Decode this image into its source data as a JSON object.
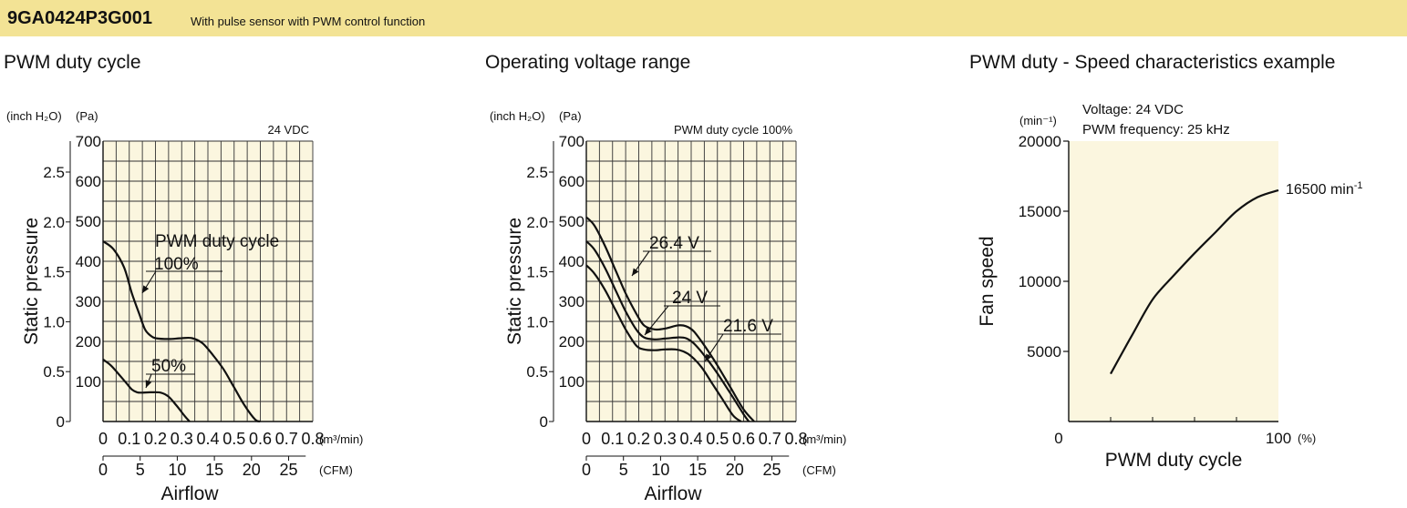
{
  "header": {
    "model": "9GA0424P3G001",
    "subtitle": "With pulse sensor with PWM control function"
  },
  "colors": {
    "header_bg": "#f3e395",
    "plot_bg": "#fbf6df",
    "line": "#111111"
  },
  "chart_data": [
    {
      "id": "pwm-duty-cycle",
      "type": "line",
      "title": "PWM duty cycle",
      "condition": "24 VDC",
      "ylabel": "Static pressure",
      "xlabel": "Airflow",
      "y_unit_left": "(inch H₂O)",
      "y_unit_right": "(Pa)",
      "x_unit_top": "(m³/min)",
      "x_unit_bottom": "(CFM)",
      "ylim": [
        0,
        700
      ],
      "xlim": [
        0,
        0.8
      ],
      "grid": true,
      "pa_ticks": [
        "0",
        "100",
        "200",
        "300",
        "400",
        "500",
        "600",
        "700"
      ],
      "inch_ticks": [
        "0",
        "0.5",
        "1.0",
        "1.5",
        "2.0",
        "2.5"
      ],
      "x_ticks": [
        "0",
        "0.1",
        "0.2",
        "0.3",
        "0.4",
        "0.5",
        "0.6",
        "0.7",
        "0.8"
      ],
      "cfm_ticks": [
        "0",
        "5",
        "10",
        "15",
        "20",
        "25"
      ],
      "annotations": [
        "PWM duty cycle",
        "100%",
        "50%"
      ],
      "series": [
        {
          "name": "100%",
          "x": [
            0,
            0.04,
            0.08,
            0.11,
            0.14,
            0.16,
            0.18,
            0.2,
            0.25,
            0.3,
            0.34,
            0.38,
            0.42,
            0.46,
            0.5,
            0.54,
            0.58,
            0.6
          ],
          "y": [
            450,
            430,
            385,
            320,
            265,
            230,
            215,
            208,
            206,
            208,
            208,
            195,
            165,
            130,
            85,
            40,
            5,
            0
          ]
        },
        {
          "name": "50%",
          "x": [
            0,
            0.03,
            0.06,
            0.09,
            0.11,
            0.13,
            0.15,
            0.18,
            0.22,
            0.25,
            0.28,
            0.31,
            0.33
          ],
          "y": [
            155,
            140,
            118,
            95,
            80,
            73,
            72,
            73,
            72,
            62,
            40,
            15,
            0
          ]
        }
      ]
    },
    {
      "id": "operating-voltage-range",
      "type": "line",
      "title": "Operating voltage range",
      "condition": "PWM duty cycle 100%",
      "ylabel": "Static pressure",
      "xlabel": "Airflow",
      "y_unit_left": "(inch H₂O)",
      "y_unit_right": "(Pa)",
      "x_unit_top": "(m³/min)",
      "x_unit_bottom": "(CFM)",
      "ylim": [
        0,
        700
      ],
      "xlim": [
        0,
        0.8
      ],
      "grid": true,
      "pa_ticks": [
        "0",
        "100",
        "200",
        "300",
        "400",
        "500",
        "600",
        "700"
      ],
      "inch_ticks": [
        "0",
        "0.5",
        "1.0",
        "1.5",
        "2.0",
        "2.5"
      ],
      "x_ticks": [
        "0",
        "0.1",
        "0.2",
        "0.3",
        "0.4",
        "0.5",
        "0.6",
        "0.7",
        "0.8"
      ],
      "cfm_ticks": [
        "0",
        "5",
        "10",
        "15",
        "20",
        "25"
      ],
      "series": [
        {
          "name": "26.4 V",
          "x": [
            0,
            0.03,
            0.07,
            0.11,
            0.15,
            0.19,
            0.22,
            0.26,
            0.3,
            0.35,
            0.38,
            0.41,
            0.45,
            0.5,
            0.55,
            0.6,
            0.64
          ],
          "y": [
            510,
            490,
            440,
            380,
            320,
            270,
            240,
            230,
            232,
            240,
            238,
            225,
            190,
            140,
            85,
            30,
            0
          ]
        },
        {
          "name": "24 V",
          "x": [
            0,
            0.03,
            0.07,
            0.11,
            0.15,
            0.19,
            0.22,
            0.26,
            0.3,
            0.35,
            0.38,
            0.41,
            0.45,
            0.5,
            0.55,
            0.6,
            0.62
          ],
          "y": [
            450,
            430,
            385,
            330,
            275,
            230,
            210,
            205,
            207,
            210,
            208,
            195,
            165,
            120,
            70,
            18,
            0
          ]
        },
        {
          "name": "21.6 V",
          "x": [
            0,
            0.03,
            0.07,
            0.11,
            0.15,
            0.19,
            0.22,
            0.26,
            0.3,
            0.34,
            0.37,
            0.4,
            0.44,
            0.48,
            0.52,
            0.56,
            0.59
          ],
          "y": [
            390,
            370,
            330,
            280,
            230,
            190,
            180,
            178,
            180,
            180,
            175,
            163,
            135,
            95,
            55,
            15,
            0
          ]
        }
      ]
    },
    {
      "id": "pwm-duty-speed",
      "type": "line",
      "title": "PWM duty - Speed characteristics example",
      "condition_lines": [
        "Voltage: 24 VDC",
        "PWM frequency: 25 kHz"
      ],
      "ylabel": "Fan speed",
      "xlabel": "PWM duty cycle",
      "y_unit": "(min⁻¹)",
      "x_unit": "(%)",
      "ylim": [
        0,
        20000
      ],
      "xlim": [
        0,
        100
      ],
      "grid": false,
      "y_ticks": [
        "5000",
        "10000",
        "15000",
        "20000"
      ],
      "x_ticks": [
        "0",
        "100"
      ],
      "end_label_value": "16500 min",
      "end_label_unit": "-1",
      "series": [
        {
          "name": "",
          "x": [
            20,
            30,
            40,
            50,
            60,
            70,
            80,
            90,
            100
          ],
          "y": [
            3400,
            6100,
            8700,
            10400,
            12000,
            13500,
            15000,
            16000,
            16500
          ]
        }
      ]
    }
  ]
}
